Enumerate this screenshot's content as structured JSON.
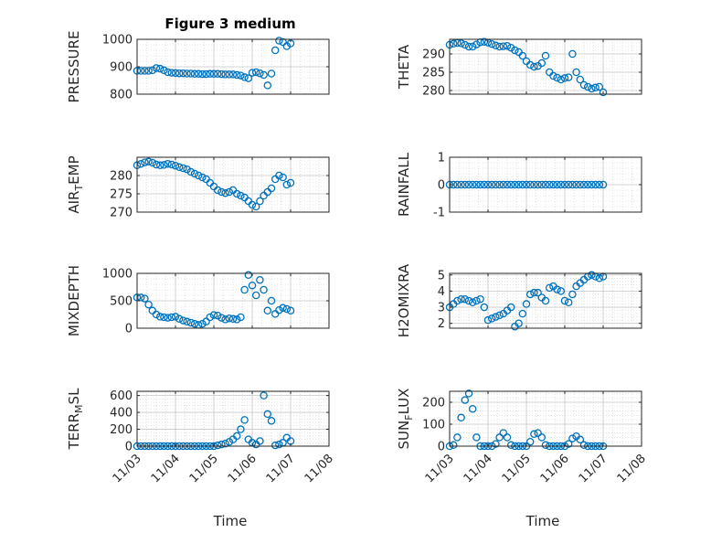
{
  "figure": {
    "title": "Figure 3 medium",
    "marker_color": "#0072BD"
  },
  "chart_data": [
    {
      "type": "scatter",
      "name": "pressure-panel",
      "ylabel": "PRESSURE",
      "ylabel_sub": "",
      "ylim": [
        800,
        1000
      ],
      "yticks": [
        800,
        900,
        1000
      ],
      "xlim": [
        "11/03",
        "11/08"
      ],
      "xticks": [
        "11/03",
        "11/04",
        "11/05",
        "11/06",
        "11/07",
        "11/08"
      ],
      "title": "Figure 3 medium",
      "x": [
        "11/03 00:00",
        "11/03 02:24",
        "11/03 04:48",
        "11/03 07:12",
        "11/03 09:36",
        "11/03 12:00",
        "11/03 14:24",
        "11/03 16:48",
        "11/03 19:12",
        "11/03 21:36",
        "11/04 00:00",
        "11/04 02:24",
        "11/04 04:48",
        "11/04 07:12",
        "11/04 09:36",
        "11/04 12:00",
        "11/04 14:24",
        "11/04 16:48",
        "11/04 19:12",
        "11/04 21:36",
        "11/05 00:00",
        "11/05 02:24",
        "11/05 04:48",
        "11/05 07:12",
        "11/05 09:36",
        "11/05 12:00",
        "11/05 14:24",
        "11/05 16:48",
        "11/05 19:12",
        "11/05 21:36",
        "11/06 00:00",
        "11/06 02:24",
        "11/06 04:48",
        "11/06 07:12",
        "11/06 09:36",
        "11/06 12:00",
        "11/06 14:24",
        "11/06 16:48",
        "11/06 19:12",
        "11/06 21:36",
        "11/07 00:00"
      ],
      "y": [
        885,
        885,
        885,
        885,
        887,
        895,
        893,
        887,
        880,
        878,
        877,
        876,
        876,
        875,
        875,
        874,
        874,
        873,
        873,
        874,
        874,
        874,
        873,
        872,
        872,
        872,
        870,
        868,
        862,
        858,
        878,
        880,
        876,
        870,
        832,
        875,
        960,
        995,
        990,
        975,
        985
      ]
    },
    {
      "type": "scatter",
      "name": "theta-panel",
      "ylabel": "THETA",
      "ylabel_sub": "",
      "ylim": [
        279,
        294
      ],
      "yticks": [
        280,
        285,
        290
      ],
      "xlim": [
        "11/03",
        "11/08"
      ],
      "xticks": [
        "11/03",
        "11/04",
        "11/05",
        "11/06",
        "11/07",
        "11/08"
      ],
      "x": [
        "11/03 00:00",
        "11/03 02:24",
        "11/03 04:48",
        "11/03 07:12",
        "11/03 09:36",
        "11/03 12:00",
        "11/03 14:24",
        "11/03 16:48",
        "11/03 19:12",
        "11/03 21:36",
        "11/04 00:00",
        "11/04 02:24",
        "11/04 04:48",
        "11/04 07:12",
        "11/04 09:36",
        "11/04 12:00",
        "11/04 14:24",
        "11/04 16:48",
        "11/04 19:12",
        "11/04 21:36",
        "11/05 00:00",
        "11/05 02:24",
        "11/05 04:48",
        "11/05 07:12",
        "11/05 09:36",
        "11/05 12:00",
        "11/05 14:24",
        "11/05 16:48",
        "11/05 19:12",
        "11/05 21:36",
        "11/06 00:00",
        "11/06 02:24",
        "11/06 04:48",
        "11/06 07:12",
        "11/06 09:36",
        "11/06 12:00",
        "11/06 14:24",
        "11/06 16:48",
        "11/06 19:12",
        "11/06 21:36",
        "11/07 00:00"
      ],
      "y": [
        292.5,
        292.8,
        293,
        292.9,
        292.5,
        292,
        292,
        292.6,
        293.2,
        293.3,
        293.1,
        292.7,
        292.3,
        292,
        292.1,
        292.2,
        291.7,
        291,
        290.5,
        289.5,
        288,
        287,
        286.5,
        286.7,
        287.5,
        289.5,
        285,
        284,
        283.5,
        283,
        283.4,
        283.6,
        290,
        285,
        283,
        281.5,
        281,
        280.5,
        280.8,
        281,
        279.5
      ]
    },
    {
      "type": "scatter",
      "name": "air-temp-panel",
      "ylabel": "AIR",
      "ylabel_sub": "T",
      "ylabel_rest": "EMP",
      "ylim": [
        270,
        285
      ],
      "yticks": [
        270,
        275,
        280
      ],
      "xlim": [
        "11/03",
        "11/08"
      ],
      "xticks": [
        "11/03",
        "11/04",
        "11/05",
        "11/06",
        "11/07",
        "11/08"
      ],
      "x": [
        "11/03 00:00",
        "11/03 02:24",
        "11/03 04:48",
        "11/03 07:12",
        "11/03 09:36",
        "11/03 12:00",
        "11/03 14:24",
        "11/03 16:48",
        "11/03 19:12",
        "11/03 21:36",
        "11/04 00:00",
        "11/04 02:24",
        "11/04 04:48",
        "11/04 07:12",
        "11/04 09:36",
        "11/04 12:00",
        "11/04 14:24",
        "11/04 16:48",
        "11/04 19:12",
        "11/04 21:36",
        "11/05 00:00",
        "11/05 02:24",
        "11/05 04:48",
        "11/05 07:12",
        "11/05 09:36",
        "11/05 12:00",
        "11/05 14:24",
        "11/05 16:48",
        "11/05 19:12",
        "11/05 21:36",
        "11/06 00:00",
        "11/06 02:24",
        "11/06 04:48",
        "11/06 07:12",
        "11/06 09:36",
        "11/06 12:00",
        "11/06 14:24",
        "11/06 16:48",
        "11/06 19:12",
        "11/06 21:36",
        "11/07 00:00"
      ],
      "y": [
        282.8,
        283.2,
        283.6,
        283.8,
        283.5,
        283,
        282.8,
        282.9,
        283.2,
        283,
        282.7,
        282.3,
        282,
        281.7,
        281,
        280.5,
        280,
        279.5,
        279,
        278,
        277,
        276,
        275.5,
        275.2,
        275.5,
        276,
        275,
        274.5,
        274,
        273,
        272,
        271.5,
        273,
        274.5,
        275.5,
        276.5,
        279,
        280,
        279.5,
        277.5,
        278
      ]
    },
    {
      "type": "scatter",
      "name": "rainfall-panel",
      "ylabel": "RAINFALL",
      "ylabel_sub": "",
      "ylim": [
        -1,
        1
      ],
      "yticks": [
        -1,
        0,
        1
      ],
      "xlim": [
        "11/03",
        "11/08"
      ],
      "xticks": [
        "11/03",
        "11/04",
        "11/05",
        "11/06",
        "11/07",
        "11/08"
      ],
      "x": [
        "11/03 00:00",
        "11/03 02:24",
        "11/03 04:48",
        "11/03 07:12",
        "11/03 09:36",
        "11/03 12:00",
        "11/03 14:24",
        "11/03 16:48",
        "11/03 19:12",
        "11/03 21:36",
        "11/04 00:00",
        "11/04 02:24",
        "11/04 04:48",
        "11/04 07:12",
        "11/04 09:36",
        "11/04 12:00",
        "11/04 14:24",
        "11/04 16:48",
        "11/04 19:12",
        "11/04 21:36",
        "11/05 00:00",
        "11/05 02:24",
        "11/05 04:48",
        "11/05 07:12",
        "11/05 09:36",
        "11/05 12:00",
        "11/05 14:24",
        "11/05 16:48",
        "11/05 19:12",
        "11/05 21:36",
        "11/06 00:00",
        "11/06 02:24",
        "11/06 04:48",
        "11/06 07:12",
        "11/06 09:36",
        "11/06 12:00",
        "11/06 14:24",
        "11/06 16:48",
        "11/06 19:12",
        "11/06 21:36",
        "11/07 00:00"
      ],
      "y": [
        0,
        0,
        0,
        0,
        0,
        0,
        0,
        0,
        0,
        0,
        0,
        0,
        0,
        0,
        0,
        0,
        0,
        0,
        0,
        0,
        0,
        0,
        0,
        0,
        0,
        0,
        0,
        0,
        0,
        0,
        0,
        0,
        0,
        0,
        0,
        0,
        0,
        0,
        0,
        0,
        0
      ]
    },
    {
      "type": "scatter",
      "name": "mixdepth-panel",
      "ylabel": "MIXDEPTH",
      "ylabel_sub": "",
      "ylim": [
        0,
        1000
      ],
      "yticks": [
        0,
        500,
        1000
      ],
      "xlim": [
        "11/03",
        "11/08"
      ],
      "xticks": [
        "11/03",
        "11/04",
        "11/05",
        "11/06",
        "11/07",
        "11/08"
      ],
      "x": [
        "11/03 00:00",
        "11/03 02:24",
        "11/03 04:48",
        "11/03 07:12",
        "11/03 09:36",
        "11/03 12:00",
        "11/03 14:24",
        "11/03 16:48",
        "11/03 19:12",
        "11/03 21:36",
        "11/04 00:00",
        "11/04 02:24",
        "11/04 04:48",
        "11/04 07:12",
        "11/04 09:36",
        "11/04 12:00",
        "11/04 14:24",
        "11/04 16:48",
        "11/04 19:12",
        "11/04 21:36",
        "11/05 00:00",
        "11/05 02:24",
        "11/05 04:48",
        "11/05 07:12",
        "11/05 09:36",
        "11/05 12:00",
        "11/05 14:24",
        "11/05 16:48",
        "11/05 19:12",
        "11/05 21:36",
        "11/06 00:00",
        "11/06 02:24",
        "11/06 04:48",
        "11/06 07:12",
        "11/06 09:36",
        "11/06 12:00",
        "11/06 14:24",
        "11/06 16:48",
        "11/06 19:12",
        "11/06 21:36",
        "11/07 00:00"
      ],
      "y": [
        560,
        560,
        540,
        430,
        320,
        250,
        210,
        200,
        190,
        200,
        210,
        170,
        140,
        120,
        100,
        80,
        60,
        80,
        120,
        200,
        240,
        230,
        190,
        160,
        180,
        170,
        160,
        200,
        700,
        970,
        780,
        600,
        880,
        700,
        320,
        500,
        260,
        330,
        370,
        350,
        320
      ]
    },
    {
      "type": "scatter",
      "name": "h2omixra-panel",
      "ylabel": "H2OMIXRA",
      "ylabel_sub": "",
      "ylim": [
        1.7,
        5.1
      ],
      "yticks": [
        2,
        3,
        4,
        5
      ],
      "xlim": [
        "11/03",
        "11/08"
      ],
      "xticks": [
        "11/03",
        "11/04",
        "11/05",
        "11/06",
        "11/07",
        "11/08"
      ],
      "x": [
        "11/03 00:00",
        "11/03 02:24",
        "11/03 04:48",
        "11/03 07:12",
        "11/03 09:36",
        "11/03 12:00",
        "11/03 14:24",
        "11/03 16:48",
        "11/03 19:12",
        "11/03 21:36",
        "11/04 00:00",
        "11/04 02:24",
        "11/04 04:48",
        "11/04 07:12",
        "11/04 09:36",
        "11/04 12:00",
        "11/04 14:24",
        "11/04 16:48",
        "11/04 19:12",
        "11/04 21:36",
        "11/05 00:00",
        "11/05 02:24",
        "11/05 04:48",
        "11/05 07:12",
        "11/05 09:36",
        "11/05 12:00",
        "11/05 14:24",
        "11/05 16:48",
        "11/05 19:12",
        "11/05 21:36",
        "11/06 00:00",
        "11/06 02:24",
        "11/06 04:48",
        "11/06 07:12",
        "11/06 09:36",
        "11/06 12:00",
        "11/06 14:24",
        "11/06 16:48",
        "11/06 19:12",
        "11/06 21:36",
        "11/07 00:00"
      ],
      "y": [
        3,
        3.2,
        3.4,
        3.5,
        3.5,
        3.4,
        3.3,
        3.4,
        3.5,
        3.0,
        2.2,
        2.3,
        2.4,
        2.5,
        2.6,
        2.8,
        3.0,
        1.8,
        2.0,
        2.6,
        3.2,
        3.8,
        3.9,
        3.9,
        3.6,
        3.4,
        4.2,
        4.3,
        4.1,
        4.0,
        3.4,
        3.3,
        3.8,
        4.3,
        4.5,
        4.7,
        4.9,
        5.0,
        4.9,
        4.8,
        4.9
      ]
    },
    {
      "type": "scatter",
      "name": "terr-msl-panel",
      "ylabel": "TERR",
      "ylabel_sub": "M",
      "ylabel_rest": "SL",
      "ylim": [
        0,
        650
      ],
      "yticks": [
        0,
        200,
        400,
        600
      ],
      "xlim": [
        "11/03",
        "11/08"
      ],
      "xticks": [
        "11/03",
        "11/04",
        "11/05",
        "11/06",
        "11/07",
        "11/08"
      ],
      "x": [
        "11/03 00:00",
        "11/03 02:24",
        "11/03 04:48",
        "11/03 07:12",
        "11/03 09:36",
        "11/03 12:00",
        "11/03 14:24",
        "11/03 16:48",
        "11/03 19:12",
        "11/03 21:36",
        "11/04 00:00",
        "11/04 02:24",
        "11/04 04:48",
        "11/04 07:12",
        "11/04 09:36",
        "11/04 12:00",
        "11/04 14:24",
        "11/04 16:48",
        "11/04 19:12",
        "11/04 21:36",
        "11/05 00:00",
        "11/05 02:24",
        "11/05 04:48",
        "11/05 07:12",
        "11/05 09:36",
        "11/05 12:00",
        "11/05 14:24",
        "11/05 16:48",
        "11/05 19:12",
        "11/05 21:36",
        "11/06 00:00",
        "11/06 02:24",
        "11/06 04:48",
        "11/06 07:12",
        "11/06 09:36",
        "11/06 12:00",
        "11/06 14:24",
        "11/06 16:48",
        "11/06 19:12",
        "11/06 21:36",
        "11/07 00:00"
      ],
      "y": [
        0,
        0,
        0,
        0,
        0,
        0,
        0,
        0,
        0,
        0,
        0,
        0,
        0,
        0,
        0,
        0,
        0,
        0,
        0,
        0,
        0,
        10,
        20,
        30,
        50,
        80,
        120,
        200,
        310,
        80,
        40,
        20,
        60,
        600,
        380,
        300,
        10,
        20,
        40,
        100,
        60
      ]
    },
    {
      "type": "scatter",
      "name": "sun-flux-panel",
      "ylabel": "SUN",
      "ylabel_sub": "F",
      "ylabel_rest": "LUX",
      "ylim": [
        0,
        250
      ],
      "yticks": [
        0,
        100,
        200
      ],
      "xlim": [
        "11/03",
        "11/08"
      ],
      "xticks": [
        "11/03",
        "11/04",
        "11/05",
        "11/06",
        "11/07",
        "11/08"
      ],
      "x": [
        "11/03 00:00",
        "11/03 02:24",
        "11/03 04:48",
        "11/03 07:12",
        "11/03 09:36",
        "11/03 12:00",
        "11/03 14:24",
        "11/03 16:48",
        "11/03 19:12",
        "11/03 21:36",
        "11/04 00:00",
        "11/04 02:24",
        "11/04 04:48",
        "11/04 07:12",
        "11/04 09:36",
        "11/04 12:00",
        "11/04 14:24",
        "11/04 16:48",
        "11/04 19:12",
        "11/04 21:36",
        "11/05 00:00",
        "11/05 02:24",
        "11/05 04:48",
        "11/05 07:12",
        "11/05 09:36",
        "11/05 12:00",
        "11/05 14:24",
        "11/05 16:48",
        "11/05 19:12",
        "11/05 21:36",
        "11/06 00:00",
        "11/06 02:24",
        "11/06 04:48",
        "11/06 07:12",
        "11/06 09:36",
        "11/06 12:00",
        "11/06 14:24",
        "11/06 16:48",
        "11/06 19:12",
        "11/06 21:36",
        "11/07 00:00"
      ],
      "y": [
        0,
        5,
        40,
        130,
        210,
        240,
        170,
        40,
        0,
        0,
        0,
        0,
        10,
        40,
        60,
        40,
        5,
        0,
        0,
        0,
        0,
        20,
        55,
        60,
        40,
        5,
        0,
        0,
        0,
        0,
        0,
        10,
        35,
        45,
        30,
        5,
        0,
        0,
        0,
        0,
        0
      ]
    }
  ],
  "xlabel_left": "Time",
  "xlabel_right": "Time"
}
